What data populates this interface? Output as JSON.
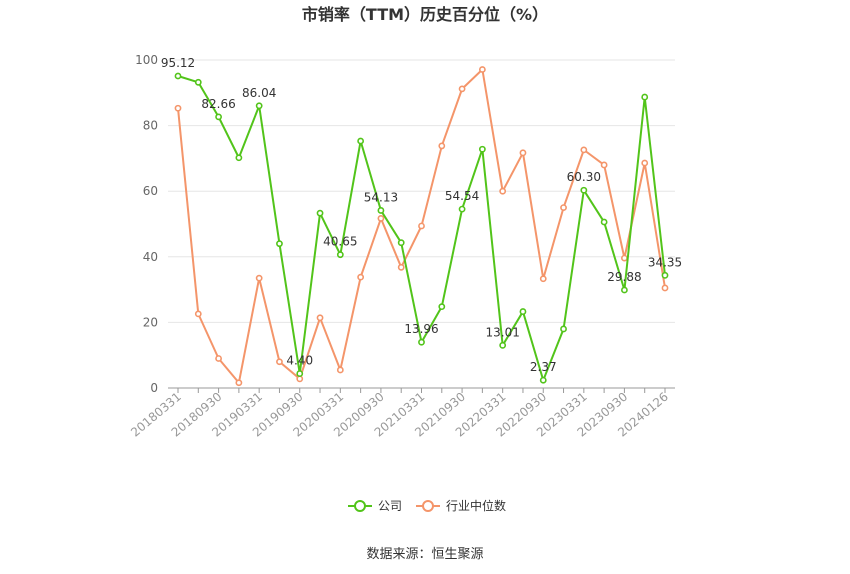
{
  "chart_data": {
    "type": "line",
    "title": "市销率（TTM）历史百分位（%）",
    "source": "数据来源：恒生聚源",
    "ylim": [
      0,
      100
    ],
    "y_ticks": [
      "0",
      "20",
      "40",
      "60",
      "80",
      "100"
    ],
    "x": [
      "20180331",
      "20180630",
      "20180930",
      "20181231",
      "20190331",
      "20190630",
      "20190930",
      "20191231",
      "20200331",
      "20200630",
      "20200930",
      "20201231",
      "20210331",
      "20210630",
      "20210930",
      "20211231",
      "20220331",
      "20220630",
      "20220930",
      "20221231",
      "20230331",
      "20230630",
      "20230930",
      "20231231",
      "20240126"
    ],
    "x_tick_labels": [
      "20180331",
      "",
      "20180930",
      "",
      "20190331",
      "",
      "20190930",
      "",
      "20200331",
      "",
      "20200930",
      "",
      "20210331",
      "",
      "20210930",
      "",
      "20220331",
      "",
      "20220930",
      "",
      "20230331",
      "",
      "20230930",
      "",
      "20240126"
    ],
    "series": [
      {
        "name": "公司",
        "color": "#52c41a",
        "values": [
          95.12,
          93.2,
          82.66,
          70.2,
          86.04,
          44.0,
          4.4,
          53.3,
          40.65,
          75.3,
          54.13,
          44.3,
          13.96,
          24.8,
          54.54,
          72.8,
          13.01,
          23.3,
          2.37,
          18.0,
          60.3,
          50.6,
          29.88,
          88.7,
          34.35
        ],
        "labels": [
          "95.12",
          "",
          "82.66",
          "",
          "86.04",
          "",
          "4.40",
          "",
          "40.65",
          "",
          "54.13",
          "",
          "13.96",
          "",
          "54.54",
          "",
          "13.01",
          "",
          "2.37",
          "",
          "60.30",
          "",
          "29.88",
          "",
          "34.35"
        ]
      },
      {
        "name": "行业中位数",
        "color": "#f4956a",
        "values": [
          85.3,
          22.6,
          9.0,
          1.6,
          33.5,
          8.0,
          2.8,
          21.4,
          5.5,
          33.8,
          51.7,
          36.8,
          49.4,
          73.8,
          91.2,
          97.1,
          60.0,
          71.7,
          33.3,
          55.0,
          72.6,
          68.0,
          39.6,
          68.6,
          30.5
        ]
      }
    ],
    "legend": {
      "placement": "bottom"
    },
    "grid": true
  }
}
